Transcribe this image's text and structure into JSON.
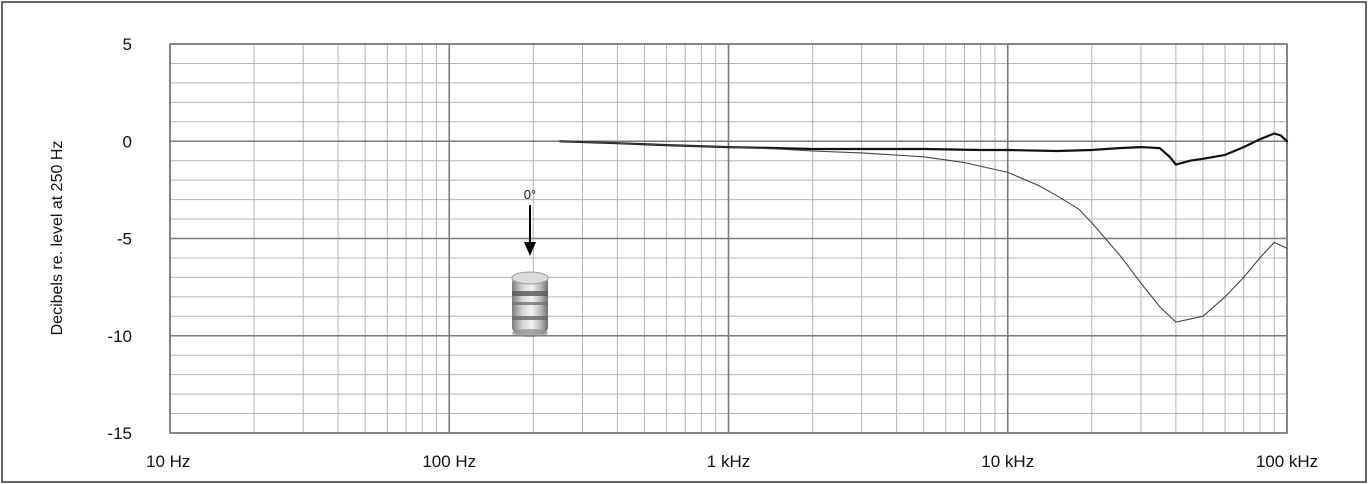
{
  "chart_data": {
    "type": "line",
    "title": "",
    "xlabel": "",
    "ylabel": "Decibels re. level at 250 Hz",
    "x_scale": "log",
    "xlim": [
      10,
      100000
    ],
    "ylim": [
      -15,
      5
    ],
    "x_ticks": [
      {
        "value": 10,
        "label": "10 Hz"
      },
      {
        "value": 100,
        "label": "100 Hz"
      },
      {
        "value": 1000,
        "label": "1 kHz"
      },
      {
        "value": 10000,
        "label": "10 kHz"
      },
      {
        "value": 100000,
        "label": "100 kHz"
      }
    ],
    "y_ticks": [
      {
        "value": 5,
        "label": "5"
      },
      {
        "value": 0,
        "label": "0"
      },
      {
        "value": -5,
        "label": "-5"
      },
      {
        "value": -10,
        "label": "-10"
      },
      {
        "value": -15,
        "label": "-15"
      }
    ],
    "y_minor_step": 1,
    "grid": true,
    "series": [
      {
        "color": "#111111",
        "style": "thick",
        "points": [
          [
            250,
            0
          ],
          [
            400,
            -0.1
          ],
          [
            600,
            -0.2
          ],
          [
            1000,
            -0.3
          ],
          [
            1500,
            -0.35
          ],
          [
            2000,
            -0.4
          ],
          [
            3000,
            -0.4
          ],
          [
            5000,
            -0.4
          ],
          [
            8000,
            -0.45
          ],
          [
            10000,
            -0.45
          ],
          [
            15000,
            -0.5
          ],
          [
            20000,
            -0.45
          ],
          [
            25000,
            -0.35
          ],
          [
            30000,
            -0.3
          ],
          [
            35000,
            -0.35
          ],
          [
            38000,
            -0.8
          ],
          [
            40000,
            -1.2
          ],
          [
            45000,
            -1.0
          ],
          [
            50000,
            -0.9
          ],
          [
            60000,
            -0.7
          ],
          [
            70000,
            -0.3
          ],
          [
            80000,
            0.1
          ],
          [
            90000,
            0.4
          ],
          [
            95000,
            0.3
          ],
          [
            100000,
            0.0
          ]
        ]
      },
      {
        "color": "#444444",
        "style": "thin",
        "points": [
          [
            250,
            0
          ],
          [
            400,
            -0.1
          ],
          [
            600,
            -0.2
          ],
          [
            1000,
            -0.3
          ],
          [
            1500,
            -0.4
          ],
          [
            2000,
            -0.5
          ],
          [
            3000,
            -0.6
          ],
          [
            5000,
            -0.8
          ],
          [
            7000,
            -1.1
          ],
          [
            10000,
            -1.6
          ],
          [
            13000,
            -2.3
          ],
          [
            15000,
            -2.8
          ],
          [
            18000,
            -3.5
          ],
          [
            20000,
            -4.2
          ],
          [
            25000,
            -5.8
          ],
          [
            30000,
            -7.3
          ],
          [
            35000,
            -8.5
          ],
          [
            40000,
            -9.3
          ],
          [
            50000,
            -9.0
          ],
          [
            60000,
            -8.0
          ],
          [
            70000,
            -7.0
          ],
          [
            80000,
            -6.0
          ],
          [
            90000,
            -5.2
          ],
          [
            100000,
            -5.5
          ]
        ]
      }
    ],
    "annotation": {
      "label": "0°"
    }
  }
}
